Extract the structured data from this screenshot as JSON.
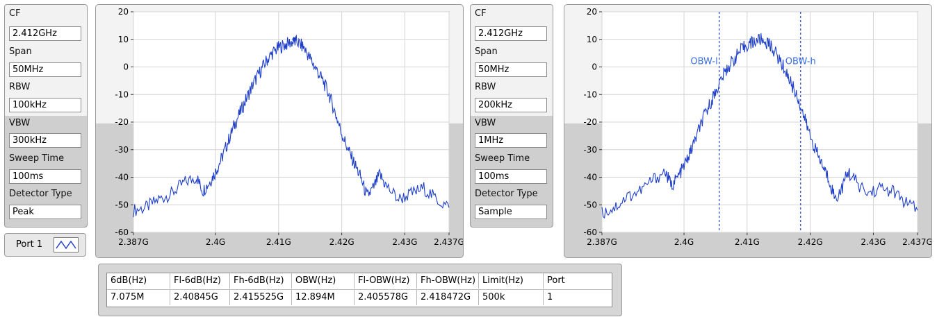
{
  "panel1": {
    "cf_label": "CF",
    "cf_value": "2.412GHz",
    "span_label": "Span",
    "span_value": "50MHz",
    "rbw_label": "RBW",
    "rbw_value": "100kHz",
    "vbw_label": "VBW",
    "vbw_value": "300kHz",
    "sweep_label": "Sweep Time",
    "sweep_value": "100ms",
    "detector_label": "Detector Type",
    "detector_value": "Peak"
  },
  "panel2": {
    "cf_label": "CF",
    "cf_value": "2.412GHz",
    "span_label": "Span",
    "span_value": "50MHz",
    "rbw_label": "RBW",
    "rbw_value": "200kHz",
    "vbw_label": "VBW",
    "vbw_value": "1MHz",
    "sweep_label": "Sweep Time",
    "sweep_value": "100ms",
    "detector_label": "Detector Type",
    "detector_value": "Sample"
  },
  "port_selector": {
    "label": "Port 1",
    "icon": "waveform-icon"
  },
  "results_table": {
    "headers": [
      "6dB(Hz)",
      "Fl-6dB(Hz)",
      "Fh-6dB(Hz)",
      "OBW(Hz)",
      "Fl-OBW(Hz)",
      "Fh-OBW(Hz)",
      "Limit(Hz)",
      "Port"
    ],
    "row": [
      "7.075M",
      "2.40845G",
      "2.415525G",
      "12.894M",
      "2.405578G",
      "2.418472G",
      "500k",
      "1"
    ]
  },
  "colors": {
    "trace": "#1f3fc8",
    "cursor": "#1f3fc8",
    "cursor_label": "#3a6fe0"
  },
  "chart_data": [
    {
      "type": "line",
      "xlim": [
        2.387,
        2.437
      ],
      "ylim": [
        -60,
        20
      ],
      "xticks": [
        "2.387G",
        "2.4G",
        "2.41G",
        "2.42G",
        "2.43G",
        "2.437G"
      ],
      "xtick_values": [
        2.387,
        2.4,
        2.41,
        2.42,
        2.43,
        2.437
      ],
      "yticks": [
        "20",
        "10",
        "0",
        "-10",
        "-20",
        "-30",
        "-40",
        "-50",
        "-60"
      ],
      "ytick_values": [
        20,
        10,
        0,
        -10,
        -20,
        -30,
        -40,
        -50,
        -60
      ],
      "grid": true,
      "series": [
        {
          "x": [
            2.387,
            2.389,
            2.391,
            2.393,
            2.395,
            2.397,
            2.398,
            2.399,
            2.4,
            2.401,
            2.402,
            2.403,
            2.404,
            2.405,
            2.406,
            2.407,
            2.408,
            2.409,
            2.41,
            2.411,
            2.412,
            2.413,
            2.414,
            2.415,
            2.416,
            2.417,
            2.418,
            2.419,
            2.42,
            2.421,
            2.422,
            2.423,
            2.424,
            2.425,
            2.426,
            2.427,
            2.429,
            2.431,
            2.433,
            2.435,
            2.437
          ],
          "y": [
            -52,
            -51,
            -48,
            -46,
            -42,
            -40,
            -45,
            -42,
            -38,
            -33,
            -27,
            -21,
            -16,
            -11,
            -6,
            -2,
            2,
            5,
            7,
            8,
            9,
            9,
            7,
            3,
            -1,
            -5,
            -10,
            -17,
            -24,
            -30,
            -35,
            -40,
            -47,
            -44,
            -39,
            -43,
            -48,
            -46,
            -44,
            -48,
            -51
          ]
        }
      ],
      "markers": [
        {
          "x": 2.4125,
          "y": 10
        }
      ]
    },
    {
      "type": "line",
      "xlim": [
        2.387,
        2.437
      ],
      "ylim": [
        -60,
        20
      ],
      "xticks": [
        "2.387G",
        "2.4G",
        "2.41G",
        "2.42G",
        "2.43G",
        "2.437G"
      ],
      "xtick_values": [
        2.387,
        2.4,
        2.41,
        2.42,
        2.43,
        2.437
      ],
      "yticks": [
        "20",
        "10",
        "0",
        "-10",
        "-20",
        "-30",
        "-40",
        "-50",
        "-60"
      ],
      "ytick_values": [
        20,
        10,
        0,
        -10,
        -20,
        -30,
        -40,
        -50,
        -60
      ],
      "grid": true,
      "series": [
        {
          "x": [
            2.387,
            2.389,
            2.391,
            2.393,
            2.395,
            2.397,
            2.398,
            2.399,
            2.4,
            2.401,
            2.402,
            2.403,
            2.404,
            2.405,
            2.406,
            2.407,
            2.408,
            2.409,
            2.41,
            2.411,
            2.412,
            2.413,
            2.414,
            2.415,
            2.416,
            2.417,
            2.418,
            2.419,
            2.42,
            2.421,
            2.422,
            2.423,
            2.424,
            2.425,
            2.426,
            2.427,
            2.429,
            2.431,
            2.433,
            2.435,
            2.437
          ],
          "y": [
            -53,
            -51,
            -47,
            -45,
            -41,
            -38,
            -43,
            -40,
            -36,
            -31,
            -25,
            -19,
            -14,
            -9,
            -4,
            0,
            3,
            6,
            8,
            9,
            10,
            9,
            7,
            3,
            -1,
            -6,
            -11,
            -18,
            -25,
            -31,
            -36,
            -41,
            -48,
            -44,
            -38,
            -41,
            -46,
            -44,
            -45,
            -49,
            -52
          ]
        }
      ],
      "cursors": [
        {
          "label": "OBW-l",
          "x": 2.405578
        },
        {
          "label": "OBW-h",
          "x": 2.418472
        }
      ]
    }
  ]
}
